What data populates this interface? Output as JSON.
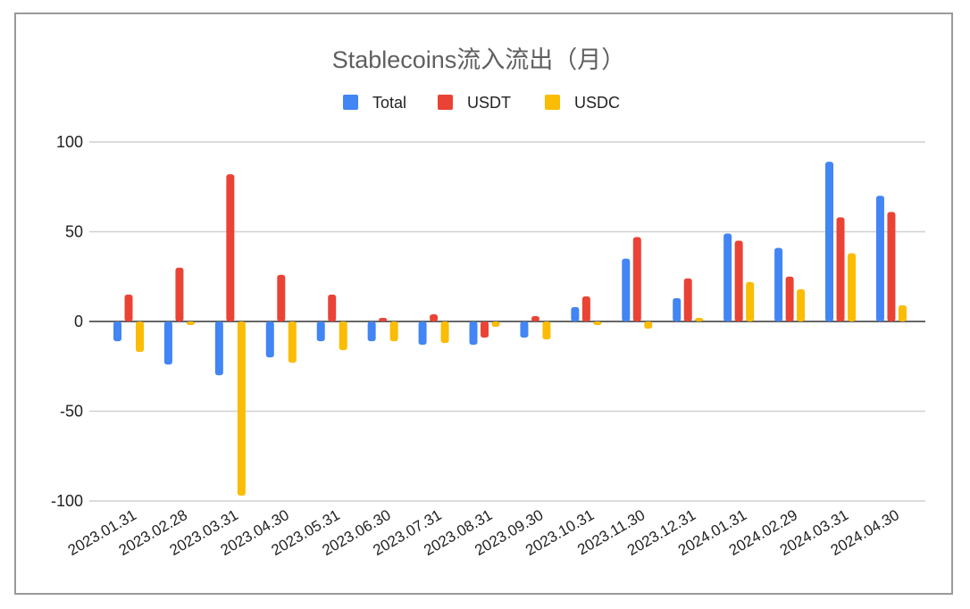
{
  "chart_data": {
    "type": "bar",
    "title": "Stablecoins流入流出（月）",
    "legend_position": "top",
    "grid": true,
    "ylim": [
      -100,
      100
    ],
    "yticks": [
      100,
      50,
      0,
      -50,
      -100
    ],
    "categories": [
      "2023.01.31",
      "2023.02.28",
      "2023.03.31",
      "2023.04.30",
      "2023.05.31",
      "2023.06.30",
      "2023.07.31",
      "2023.08.31",
      "2023.09.30",
      "2023.10.31",
      "2023.11.30",
      "2023.12.31",
      "2024.01.31",
      "2024.02.29",
      "2024.03.31",
      "2024.04.30"
    ],
    "series": [
      {
        "name": "Total",
        "color": "#4285f4",
        "values": [
          -11,
          -24,
          -30,
          -20,
          -11,
          -11,
          -13,
          -13,
          -9,
          8,
          35,
          13,
          49,
          41,
          89,
          70
        ]
      },
      {
        "name": "USDT",
        "color": "#ea4335",
        "values": [
          15,
          30,
          82,
          26,
          15,
          2,
          4,
          -9,
          3,
          14,
          47,
          24,
          45,
          25,
          58,
          61
        ]
      },
      {
        "name": "USDC",
        "color": "#fbbc04",
        "values": [
          -17,
          -2,
          -97,
          -23,
          -16,
          -11,
          -12,
          -3,
          -10,
          -2,
          -4,
          2,
          22,
          18,
          38,
          9
        ]
      }
    ]
  }
}
